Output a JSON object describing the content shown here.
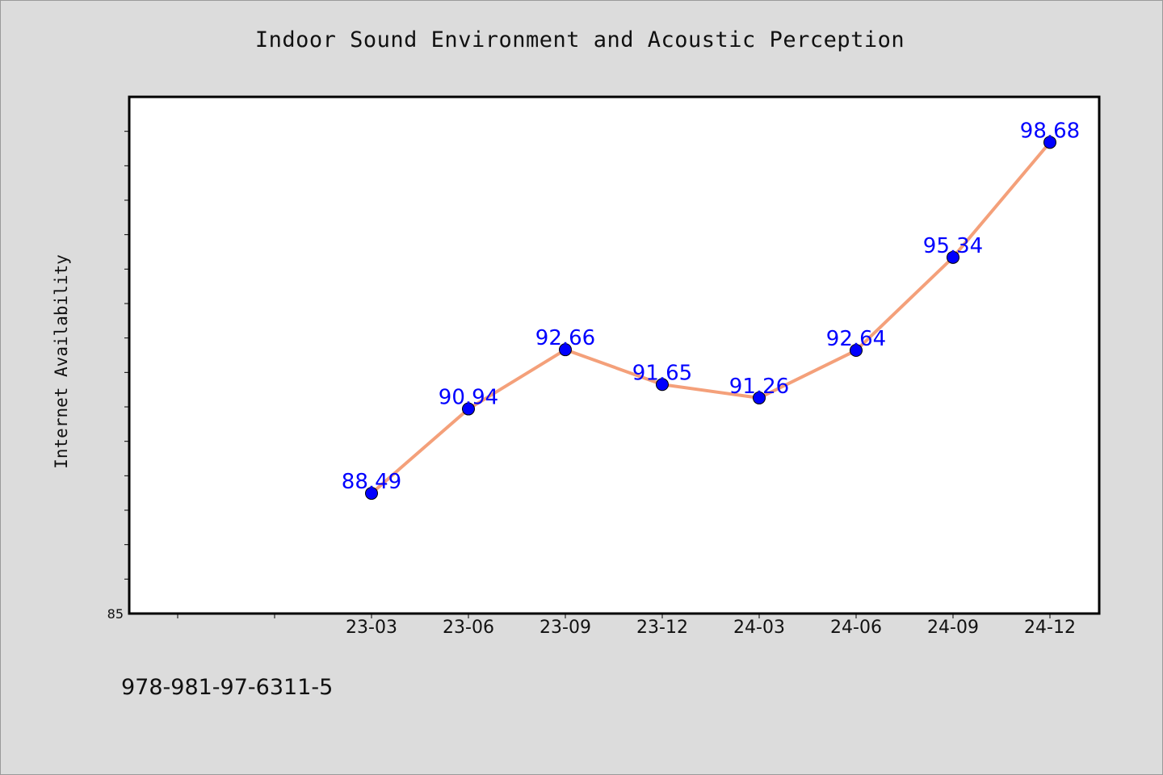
{
  "colors": {
    "background": "#dcdcdc",
    "plot_background": "#ffffff",
    "line": "#f4a07a",
    "marker": "#0000ff",
    "data_label": "#0000ff"
  },
  "footer": {
    "isbn": "978-981-97-6311-5"
  },
  "chart_data": {
    "type": "line",
    "title": "Indoor Sound Environment and Acoustic Perception",
    "xlabel": "",
    "ylabel": "Internet Availability",
    "categories": [
      "23-03",
      "23-06",
      "23-09",
      "23-12",
      "24-03",
      "24-06",
      "24-09",
      "24-12"
    ],
    "x_extra_ticks_before": 2,
    "series": [
      {
        "values": [
          88.49,
          90.94,
          92.66,
          91.65,
          91.26,
          92.64,
          95.34,
          98.68
        ]
      }
    ],
    "data_labels": [
      "88.49",
      "90.94",
      "92.66",
      "91.65",
      "91.26",
      "92.64",
      "95.34",
      "98.68"
    ],
    "ylim": [
      85,
      100
    ],
    "y_tick_labels": [
      "85"
    ],
    "y_minor_step": 1,
    "grid": false,
    "legend": "none"
  }
}
